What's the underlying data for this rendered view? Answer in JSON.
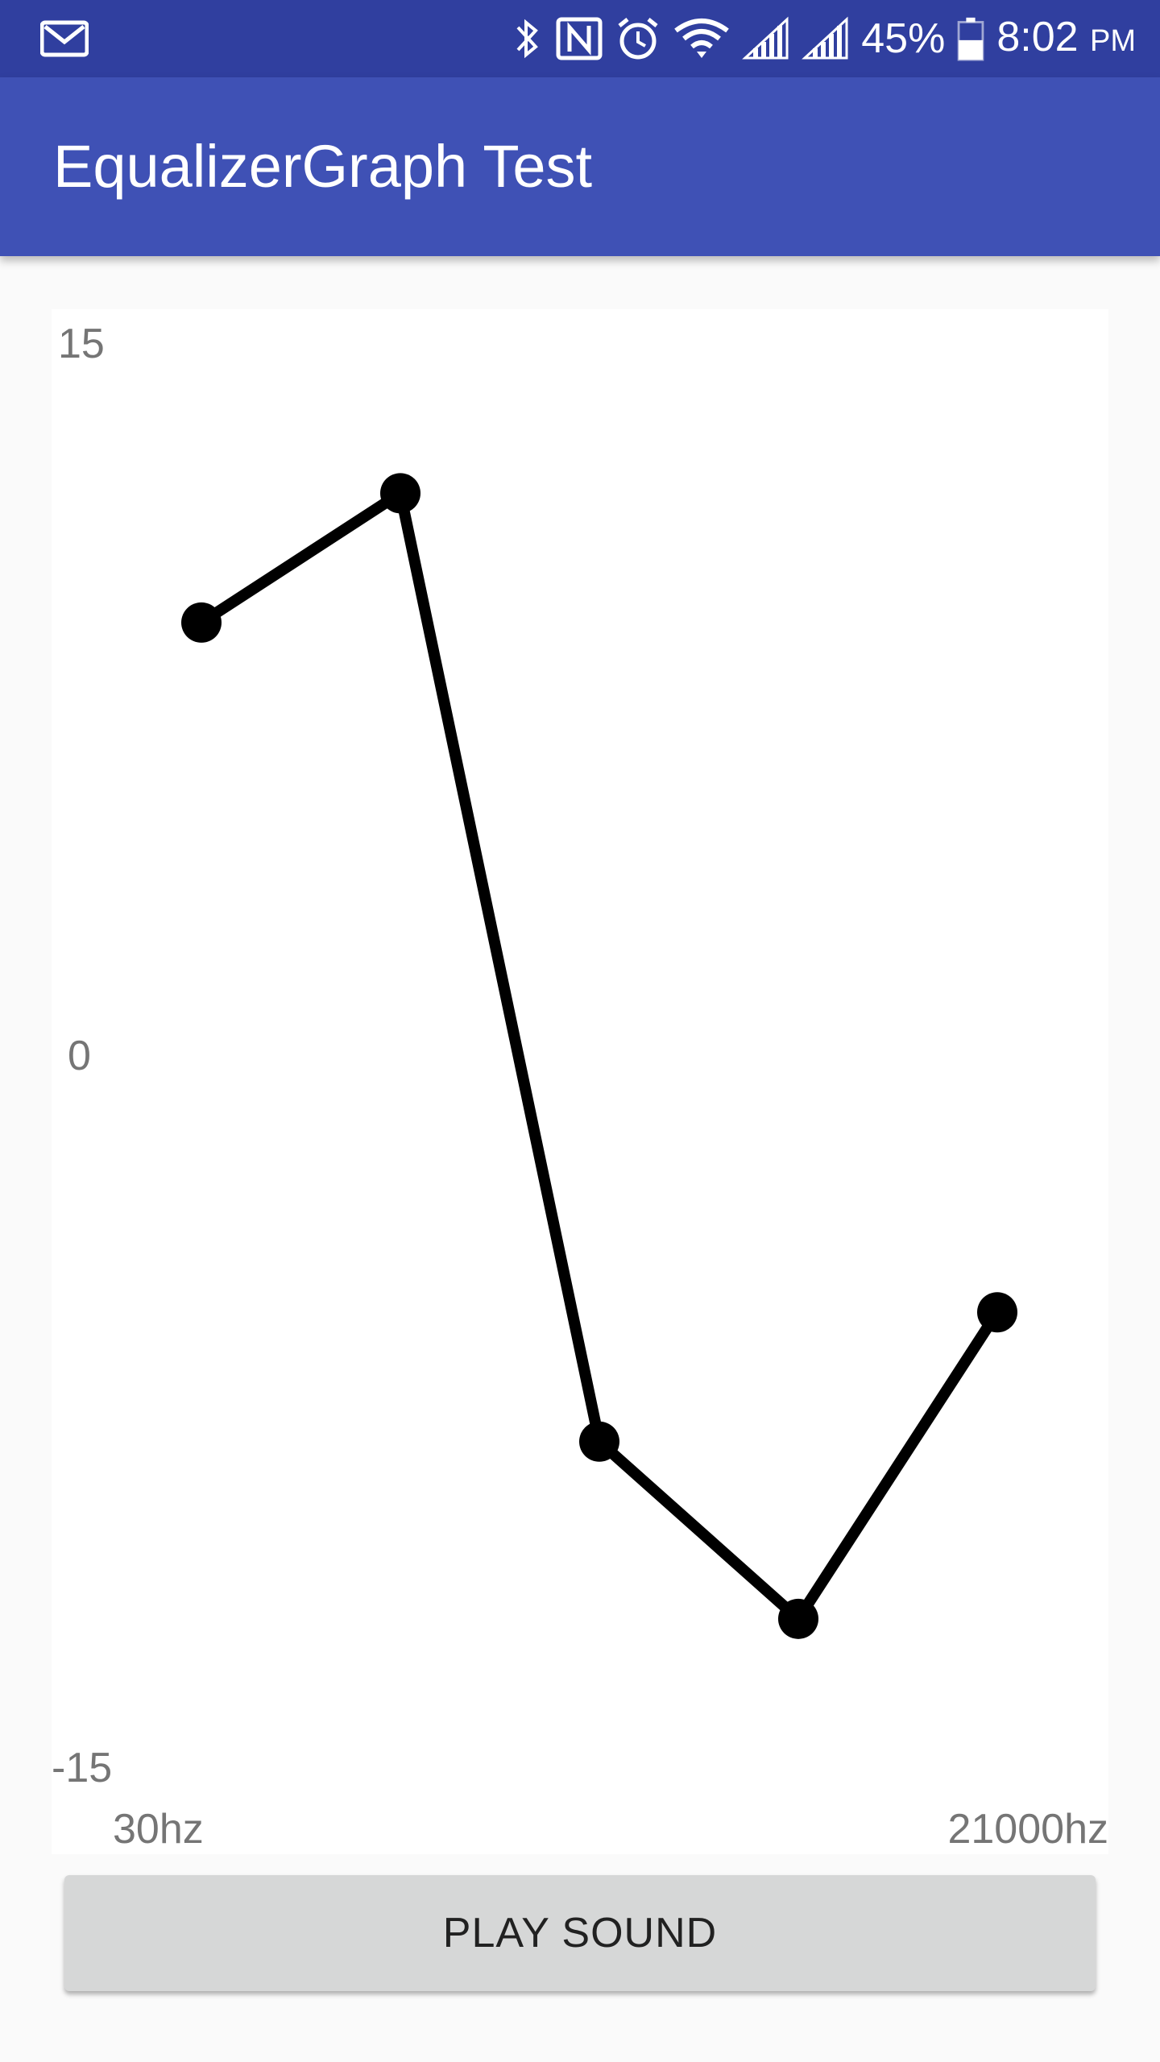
{
  "status_bar": {
    "battery": "45%",
    "time": "8:02",
    "time_suffix": "PM",
    "icons": [
      "gmail-icon",
      "bluetooth-icon",
      "nfc-icon",
      "alarm-icon",
      "wifi-icon",
      "signal-icon",
      "signal-icon-2",
      "battery-icon"
    ]
  },
  "app_bar": {
    "title": "EqualizerGraph Test"
  },
  "colors": {
    "status_bar": "#303f9f",
    "app_bar": "#3f51b5",
    "button": "#d6d7d7",
    "line": "#000000",
    "axis_text": "#757575"
  },
  "chart_data": {
    "type": "line",
    "title": "",
    "xlabel": "",
    "ylabel": "",
    "ylim": [
      -15,
      15
    ],
    "y_ticks": [
      "15",
      "0",
      "-15"
    ],
    "x_ticks": [
      "30hz",
      "21000hz"
    ],
    "points": [
      {
        "index": 0,
        "value": 9.2
      },
      {
        "index": 1,
        "value": 11.9
      },
      {
        "index": 2,
        "value": -7.9
      },
      {
        "index": 3,
        "value": -11.6
      },
      {
        "index": 4,
        "value": -5.2
      }
    ],
    "grid": false,
    "legend": "none"
  },
  "button": {
    "label": "PLAY SOUND"
  }
}
